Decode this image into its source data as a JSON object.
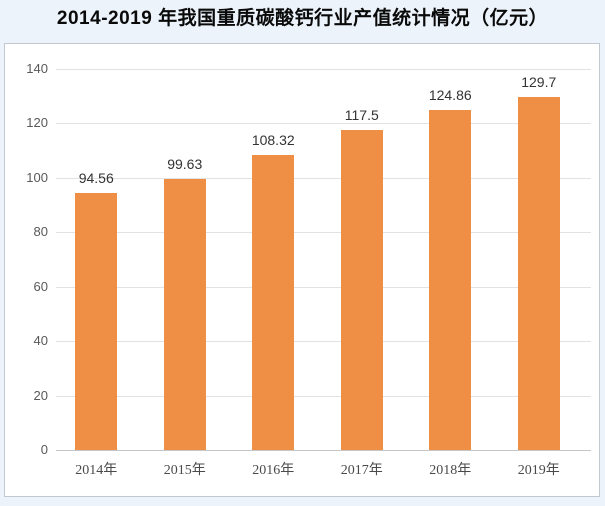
{
  "page": {
    "title": "2014-2019 年我国重质碳酸钙行业产值统计情况（亿元）"
  },
  "chart_data": {
    "type": "bar",
    "title": "2014-2019 年我国重质碳酸钙行业产值统计情况（亿元）",
    "categories": [
      "2014年",
      "2015年",
      "2016年",
      "2017年",
      "2018年",
      "2019年"
    ],
    "values": [
      94.56,
      99.63,
      108.32,
      117.5,
      124.86,
      129.7
    ],
    "xlabel": "",
    "ylabel": "",
    "ylim": [
      0,
      140
    ],
    "ytick_step": 20,
    "yticks": [
      0,
      20,
      40,
      60,
      80,
      100,
      120,
      140
    ],
    "grid": true,
    "legend": "none",
    "colors": {
      "bar": "#EF8E45",
      "value_label": "#333333",
      "ytick_text": "#595959",
      "xtick_text": "#4a4a4a",
      "gridline": "#e2e2e2",
      "axis_line": "#c6c6c6",
      "plot_background": "#ffffff",
      "page_background": "#ecf3fb",
      "box_border": "#c0c9d2",
      "title_text": "#0a0a0a"
    }
  }
}
